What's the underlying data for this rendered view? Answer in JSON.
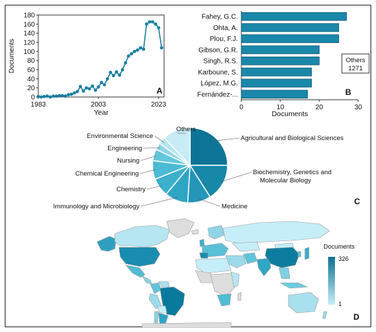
{
  "chart_data": [
    {
      "panel": "A",
      "type": "line",
      "xlabel": "Year",
      "ylabel": "Documents",
      "xlim": [
        1983,
        2023
      ],
      "ylim": [
        0,
        180
      ],
      "xticks": [
        "1983",
        "2003",
        "2023"
      ],
      "yticks": [
        "0",
        "20",
        "40",
        "60",
        "80",
        "100",
        "120",
        "140",
        "160",
        "180"
      ],
      "grid": false,
      "x": [
        1983,
        1984,
        1985,
        1986,
        1987,
        1988,
        1989,
        1990,
        1991,
        1992,
        1993,
        1994,
        1995,
        1996,
        1997,
        1998,
        1999,
        2000,
        2001,
        2002,
        2003,
        2004,
        2005,
        2006,
        2007,
        2008,
        2009,
        2010,
        2011,
        2012,
        2013,
        2014,
        2015,
        2016,
        2017,
        2018,
        2019,
        2020,
        2021,
        2022,
        2023,
        2024
      ],
      "series": [
        {
          "values": [
            1,
            0,
            1,
            2,
            0,
            2,
            2,
            3,
            3,
            2,
            5,
            6,
            9,
            12,
            23,
            13,
            20,
            18,
            24,
            15,
            22,
            32,
            27,
            40,
            54,
            47,
            55,
            48,
            60,
            75,
            90,
            95,
            100,
            103,
            108,
            105,
            160,
            165,
            165,
            160,
            152,
            108
          ],
          "color": "#1a7fa0"
        }
      ]
    },
    {
      "panel": "B",
      "type": "bar",
      "orientation": "horizontal",
      "xlabel": "Documents",
      "xlim": [
        0,
        30
      ],
      "xticks": [
        "0",
        "10",
        "20",
        "30"
      ],
      "categories": [
        "Fahey, G.C.",
        "Ohta, A.",
        "Plou, F.J.",
        "Gibson, G.R.",
        "Singh, R.S.",
        "Karboune, S.",
        "López, M.G.",
        "Fernández-..."
      ],
      "values": [
        27,
        25,
        25,
        20,
        20,
        18,
        18,
        17
      ],
      "color": "#1a88aa",
      "annotation": {
        "line1": "Others",
        "line2": "1271"
      }
    },
    {
      "panel": "C",
      "type": "pie",
      "labels": [
        "Agricultural and Biological Sciences",
        "Biochemistry, Genetics and Molecular Biology",
        "Medicine",
        "Immunology and Microbiology",
        "Chemistry",
        "Chemical Engineering",
        "Nursing",
        "Engineering",
        "Environmental Science",
        "Others"
      ],
      "values": [
        25,
        16,
        10,
        10,
        8,
        8,
        5,
        3,
        3,
        12
      ],
      "colors": [
        "#0e7496",
        "#1888a8",
        "#2596b8",
        "#2fa5c4",
        "#3db0cc",
        "#4cbad4",
        "#63c7dc",
        "#8dd6e6",
        "#b5e5ef",
        "#c8ecf4"
      ]
    },
    {
      "panel": "D",
      "type": "heatmap",
      "legend_title": "Documents",
      "legend_max": "326",
      "legend_min": "1",
      "color_max": "#0a7092",
      "color_min": "#c6eef8",
      "no_data_color": "#dddddd"
    }
  ]
}
